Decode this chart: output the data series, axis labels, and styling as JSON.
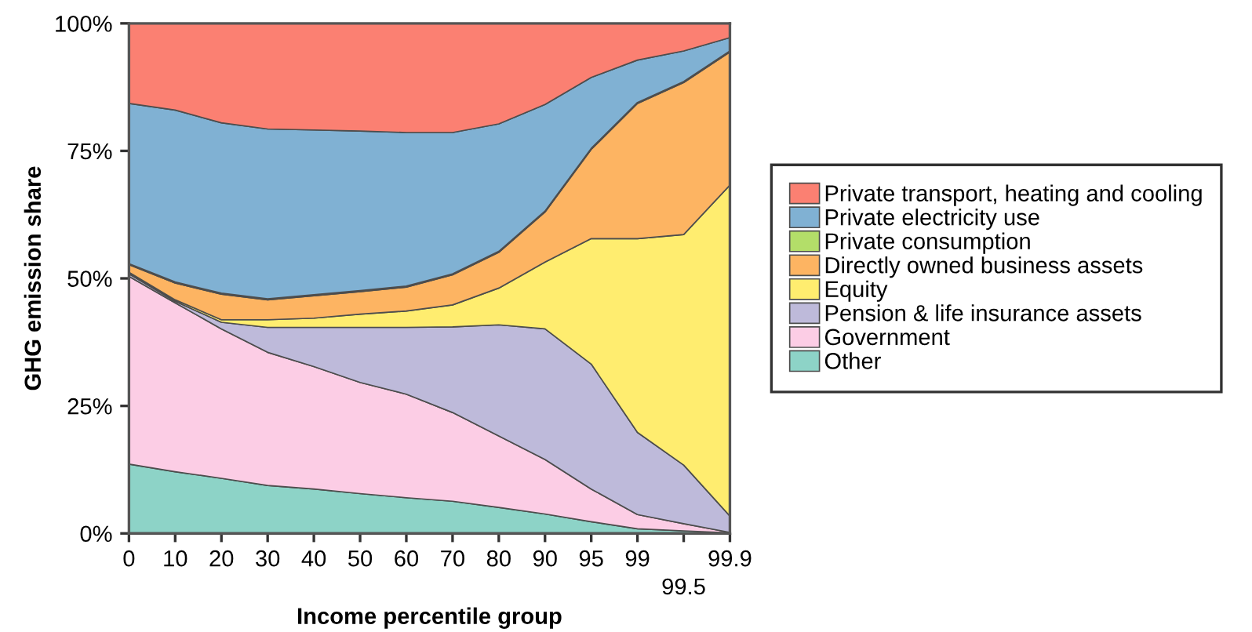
{
  "chart_data": {
    "type": "area",
    "stacked": true,
    "xlabel": "Income percentile group",
    "ylabel": "GHG emission share",
    "categories": [
      "0",
      "10",
      "20",
      "30",
      "40",
      "50",
      "60",
      "70",
      "80",
      "90",
      "95",
      "99",
      "99.5",
      "99.9"
    ],
    "series": [
      {
        "name": "Other",
        "color": "#8dd3c7",
        "values": [
          13.6,
          12.1,
          10.8,
          9.4,
          8.7,
          7.8,
          7.0,
          6.3,
          5.1,
          3.8,
          2.3,
          0.9,
          0.5,
          0.1
        ]
      },
      {
        "name": "Government",
        "color": "#fccde5",
        "values": [
          36.8,
          33.1,
          29.3,
          26.1,
          24.0,
          21.8,
          20.3,
          17.4,
          14.0,
          10.7,
          6.4,
          2.8,
          1.4,
          0.1
        ]
      },
      {
        "name": "Pension & life insurance assets",
        "color": "#bebada",
        "values": [
          0.5,
          0.3,
          1.3,
          4.9,
          7.7,
          10.8,
          13.1,
          16.8,
          21.8,
          25.6,
          24.5,
          16.1,
          11.5,
          3.2
        ]
      },
      {
        "name": "Equity",
        "color": "#ffed6f",
        "values": [
          0.3,
          0.3,
          0.5,
          1.5,
          1.8,
          2.6,
          3.2,
          4.3,
          7.2,
          13.1,
          24.6,
          38.0,
          45.2,
          64.9
        ]
      },
      {
        "name": "Directly owned business assets",
        "color": "#fdb462",
        "values": [
          1.5,
          3.3,
          5.0,
          3.9,
          4.4,
          4.4,
          4.7,
          5.9,
          7.0,
          9.8,
          17.5,
          26.5,
          29.8,
          26.1
        ]
      },
      {
        "name": "Private consumption",
        "color": "#b3de69",
        "values": [
          0.2,
          0.2,
          0.2,
          0.2,
          0.2,
          0.2,
          0.2,
          0.2,
          0.2,
          0.2,
          0.2,
          0.2,
          0.2,
          0.2
        ]
      },
      {
        "name": "Private electricity use",
        "color": "#80b1d3",
        "values": [
          31.4,
          33.7,
          33.4,
          33.3,
          32.3,
          31.3,
          30.1,
          27.7,
          25.0,
          20.9,
          13.9,
          8.3,
          6.0,
          2.6
        ]
      },
      {
        "name": "Private transport, heating and cooling",
        "color": "#fb8072",
        "values": [
          15.7,
          17.0,
          19.5,
          20.7,
          20.9,
          21.1,
          21.4,
          21.4,
          19.7,
          15.9,
          10.6,
          7.2,
          5.4,
          2.8
        ]
      }
    ],
    "ylim": [
      0,
      100
    ],
    "yticks": [
      {
        "value": 0,
        "label": "0%"
      },
      {
        "value": 25,
        "label": "25%"
      },
      {
        "value": 50,
        "label": "50%"
      },
      {
        "value": 75,
        "label": "75%"
      },
      {
        "value": 100,
        "label": "100%"
      }
    ],
    "grid": false,
    "legend": "right"
  }
}
